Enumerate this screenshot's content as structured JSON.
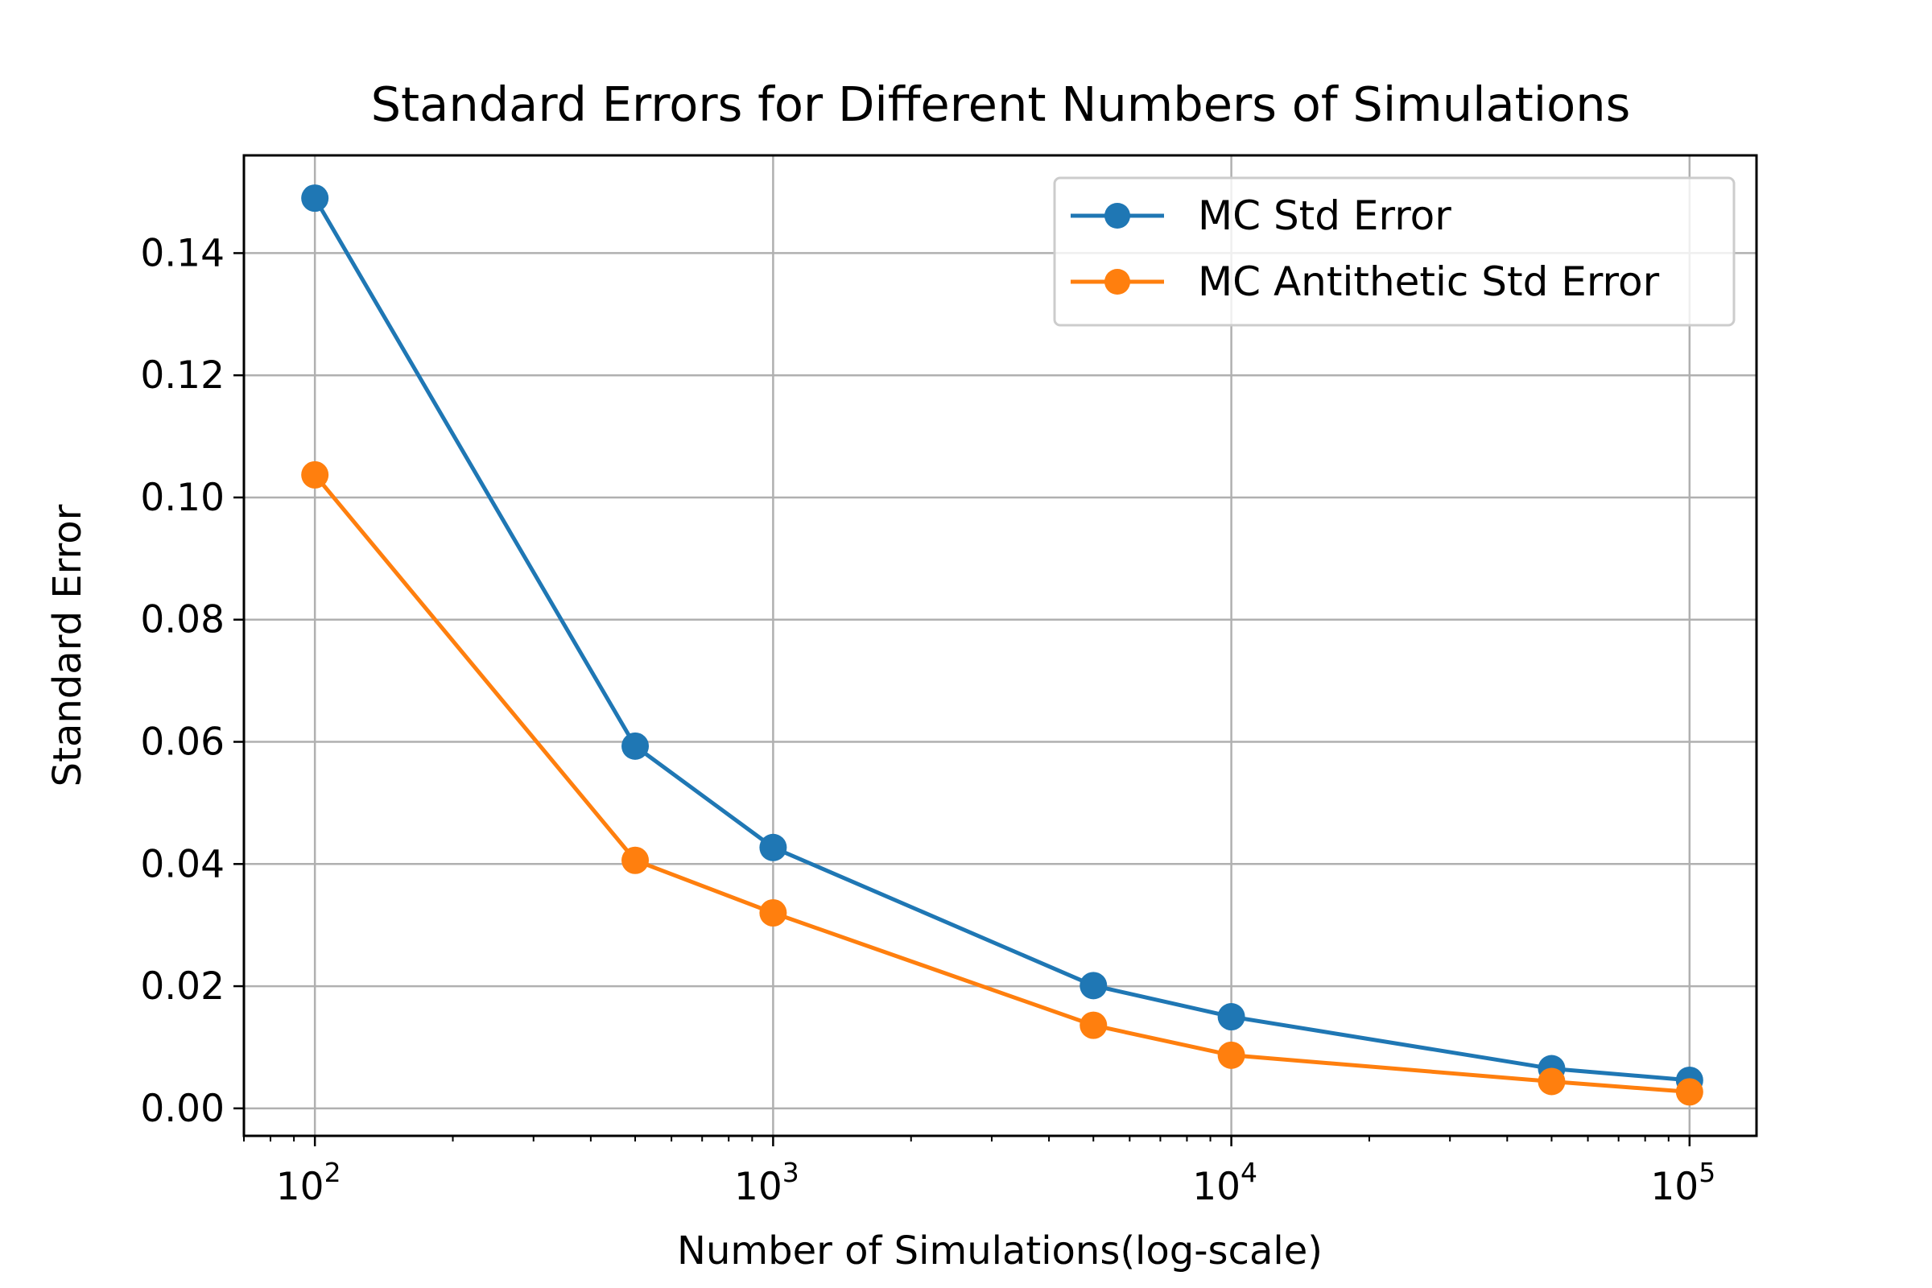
{
  "chart_data": {
    "type": "line",
    "title": "Standard Errors for Different Numbers of Simulations",
    "xlabel": "Number of Simulations(log-scale)",
    "ylabel": "Standard Error",
    "xscale": "log",
    "xlim": [
      70,
      140000
    ],
    "ylim": [
      -0.0045,
      0.156
    ],
    "grid": true,
    "legend_position": "top-right",
    "xticks": [
      {
        "value": 100,
        "base": "10",
        "exp": "2"
      },
      {
        "value": 1000,
        "base": "10",
        "exp": "3"
      },
      {
        "value": 10000,
        "base": "10",
        "exp": "4"
      },
      {
        "value": 100000,
        "base": "10",
        "exp": "5"
      }
    ],
    "yticks": [
      {
        "value": 0.0,
        "label": "0.00"
      },
      {
        "value": 0.02,
        "label": "0.02"
      },
      {
        "value": 0.04,
        "label": "0.04"
      },
      {
        "value": 0.06,
        "label": "0.06"
      },
      {
        "value": 0.08,
        "label": "0.08"
      },
      {
        "value": 0.1,
        "label": "0.10"
      },
      {
        "value": 0.12,
        "label": "0.12"
      },
      {
        "value": 0.14,
        "label": "0.14"
      }
    ],
    "x": [
      100,
      500,
      1000,
      5000,
      10000,
      50000,
      100000
    ],
    "series": [
      {
        "name": "MC Std Error",
        "color": "#1f77b4",
        "values": [
          0.149,
          0.0593,
          0.0427,
          0.0201,
          0.015,
          0.0065,
          0.0046
        ]
      },
      {
        "name": "MC Antithetic Std Error",
        "color": "#ff7f0e",
        "values": [
          0.1037,
          0.0406,
          0.032,
          0.0136,
          0.0087,
          0.0044,
          0.0027
        ]
      }
    ]
  }
}
